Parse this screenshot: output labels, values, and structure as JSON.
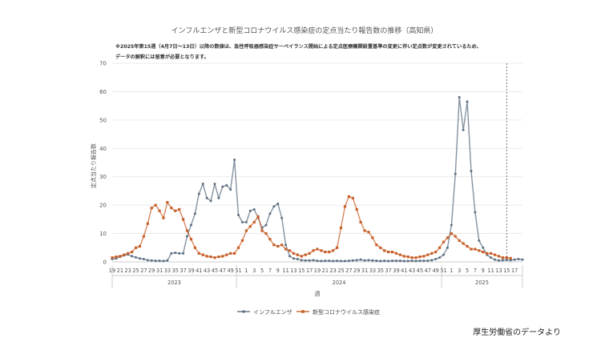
{
  "chart_data": {
    "type": "line",
    "title": "インフルエンザと新型コロナウイルス感染症の定点当たり報告数の推移（高知県）",
    "note_lines": [
      "※2025年第15週（4月7日～13日）以降の数値は、急性呼吸器感染症サーベイランス開始による定点医療機関設置基準の変更に伴い定点数が変更されているため、",
      "データの解釈には留意が必要となります。"
    ],
    "xlabel": "週",
    "ylabel": "定点当たり報告数",
    "ylim": [
      0,
      70
    ],
    "yticks": [
      "0",
      "10",
      "20",
      "30",
      "40",
      "50",
      "60",
      "70"
    ],
    "x_tick_labels": [
      "19",
      "21",
      "23",
      "25",
      "27",
      "29",
      "31",
      "33",
      "35",
      "37",
      "39",
      "41",
      "43",
      "45",
      "47",
      "49",
      "51",
      "1",
      "3",
      "5",
      "7",
      "9",
      "11",
      "13",
      "15",
      "17",
      "19",
      "21",
      "23",
      "25",
      "27",
      "29",
      "31",
      "33",
      "35",
      "37",
      "39",
      "41",
      "43",
      "45",
      "47",
      "49",
      "51",
      "1",
      "3",
      "5",
      "7",
      "9",
      "11",
      "13",
      "15",
      "17"
    ],
    "years": [
      "2023",
      "2024",
      "2025"
    ],
    "grid": true,
    "legend_position": "bottom",
    "vline_note": "2025年第15週",
    "series": [
      {
        "name": "インフルエンザ",
        "color": "#5c6f82",
        "values": [
          1.0,
          1.2,
          1.8,
          2.3,
          2.6,
          2.0,
          1.6,
          1.2,
          1.0,
          0.6,
          0.5,
          0.4,
          0.4,
          0.3,
          0.5,
          3.0,
          3.2,
          3.0,
          3.0,
          9.0,
          13.0,
          17.0,
          24.0,
          27.5,
          22.5,
          21.5,
          27.5,
          22.5,
          26.5,
          27.0,
          25.5,
          36.0,
          16.5,
          14.0,
          14.0,
          18.0,
          18.5,
          15.5,
          12.0,
          13.0,
          17.0,
          19.5,
          20.5,
          15.5,
          6.0,
          2.0,
          1.2,
          1.0,
          0.6,
          0.5,
          0.5,
          0.6,
          0.4,
          0.3,
          0.4,
          0.4,
          0.3,
          0.4,
          0.3,
          0.3,
          0.4,
          0.5,
          0.6,
          0.8,
          0.5,
          0.6,
          0.5,
          0.4,
          0.3,
          0.4,
          0.3,
          0.4,
          0.4,
          0.4,
          0.3,
          0.3,
          0.4,
          0.3,
          0.4,
          0.4,
          0.4,
          0.6,
          1.0,
          1.5,
          2.5,
          5.0,
          13.0,
          31.0,
          58.0,
          46.5,
          56.5,
          32.0,
          17.5,
          7.5,
          5.0,
          2.5,
          1.5,
          0.8,
          0.5,
          0.6,
          0.7,
          0.6,
          0.8,
          1.0,
          0.8
        ]
      },
      {
        "name": "新型コロナウイルス感染症",
        "color": "#c8602a",
        "values": [
          1.5,
          1.8,
          2.0,
          2.5,
          3.0,
          3.5,
          5.0,
          5.5,
          9.0,
          13.5,
          19.0,
          20.0,
          18.0,
          15.5,
          21.0,
          19.0,
          18.0,
          18.5,
          15.0,
          11.0,
          8.0,
          5.0,
          3.0,
          2.5,
          2.0,
          1.8,
          1.5,
          1.8,
          2.0,
          2.5,
          3.0,
          3.0,
          5.0,
          7.5,
          11.0,
          12.5,
          14.0,
          16.0,
          11.0,
          10.0,
          8.0,
          6.0,
          5.5,
          6.0,
          4.5,
          4.0,
          3.0,
          2.5,
          2.0,
          2.5,
          3.0,
          4.0,
          4.5,
          4.0,
          3.5,
          3.5,
          4.0,
          5.0,
          12.0,
          19.5,
          23.0,
          22.5,
          18.5,
          14.0,
          11.0,
          10.5,
          8.5,
          6.0,
          5.0,
          4.0,
          3.5,
          3.5,
          3.0,
          2.5,
          2.0,
          1.8,
          1.5,
          1.5,
          1.8,
          2.0,
          2.5,
          3.0,
          3.5,
          5.0,
          7.0,
          8.5,
          10.0,
          9.0,
          7.5,
          6.5,
          5.5,
          4.5,
          4.5,
          4.0,
          3.5,
          3.0,
          3.0,
          2.5,
          2.0,
          1.5,
          1.5,
          1.3
        ]
      }
    ]
  },
  "source": "厚生労働省のデータより"
}
